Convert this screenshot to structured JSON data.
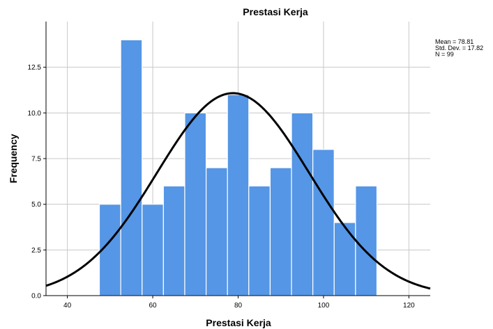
{
  "chart_data": {
    "type": "bar",
    "title": "Prestasi Kerja",
    "xlabel": "Prestasi Kerja",
    "ylabel": "Frequency",
    "xlim": [
      35,
      125
    ],
    "ylim": [
      0,
      15
    ],
    "x_ticks": [
      40,
      60,
      80,
      100,
      120
    ],
    "x_tick_labels": [
      "40",
      "60",
      "80",
      "100",
      "120"
    ],
    "y_ticks": [
      0,
      2.5,
      5,
      7.5,
      10,
      12.5
    ],
    "y_tick_labels": [
      "0.0",
      "2.5",
      "5.0",
      "7.5",
      "10.0",
      "12.5"
    ],
    "bins": [
      {
        "start": 47.5,
        "end": 52.5,
        "count": 5
      },
      {
        "start": 52.5,
        "end": 57.5,
        "count": 14
      },
      {
        "start": 57.5,
        "end": 62.5,
        "count": 5
      },
      {
        "start": 62.5,
        "end": 67.5,
        "count": 6
      },
      {
        "start": 67.5,
        "end": 72.5,
        "count": 10
      },
      {
        "start": 72.5,
        "end": 77.5,
        "count": 7
      },
      {
        "start": 77.5,
        "end": 82.5,
        "count": 11
      },
      {
        "start": 82.5,
        "end": 87.5,
        "count": 6
      },
      {
        "start": 87.5,
        "end": 92.5,
        "count": 7
      },
      {
        "start": 92.5,
        "end": 97.5,
        "count": 10
      },
      {
        "start": 97.5,
        "end": 102.5,
        "count": 8
      },
      {
        "start": 102.5,
        "end": 107.5,
        "count": 4
      },
      {
        "start": 107.5,
        "end": 112.5,
        "count": 6
      }
    ],
    "normal_curve": {
      "mean": 78.81,
      "std_dev": 17.82,
      "n": 99,
      "bin_width": 5
    },
    "stats_text": [
      "Mean = 78.81",
      "Std. Dev. = 17.82",
      "N = 99"
    ],
    "grid": true,
    "legend_position": "top-right",
    "bar_color": "#5596e6",
    "curve_color": "#000000"
  }
}
